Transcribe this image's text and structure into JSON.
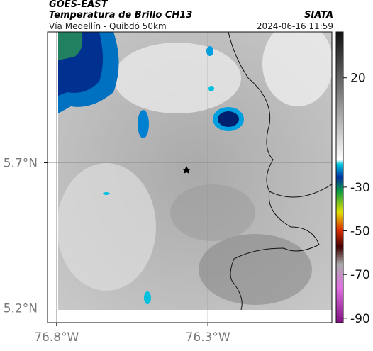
{
  "header": {
    "source": "GOES-EAST",
    "title": "Temperatura de Brillo CH13",
    "subtitle": "Vía Medellín - Quibdó 50km",
    "agency": "SIATA",
    "timestamp": "2024-06-16 11:59"
  },
  "map": {
    "latlim": [
      5.15,
      6.15
    ],
    "lonlim": [
      -76.83,
      -75.89
    ],
    "latticks": [
      {
        "value": 5.7,
        "label": "5.7°N"
      },
      {
        "value": 5.2,
        "label": "5.2°N"
      }
    ],
    "lonticks": [
      {
        "value": -76.8,
        "label": "76.8°W"
      },
      {
        "value": -76.3,
        "label": "76.3°W"
      }
    ],
    "colorbar": {
      "clim": [
        -92,
        41
      ],
      "ticks": [
        20,
        -30,
        -50,
        -70,
        -90
      ]
    }
  }
}
